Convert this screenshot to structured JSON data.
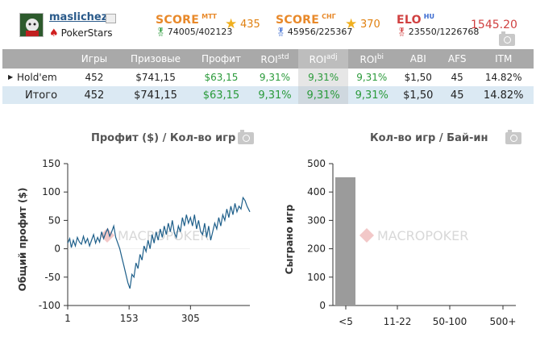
{
  "player": {
    "username": "maslichez",
    "room": "PokerStars"
  },
  "scores": [
    {
      "label": "SCORE",
      "sup": "МТТ",
      "rank": "74005/402123",
      "value": "435",
      "color": "#e8892a"
    },
    {
      "label": "SCORE",
      "sup": "СНГ",
      "rank": "45956/225367",
      "value": "370",
      "color": "#e8892a"
    },
    {
      "label": "ELO",
      "sup": "HU",
      "rank": "23550/1226768",
      "value": "1545.20",
      "color": "#d04040"
    }
  ],
  "table": {
    "headers": {
      "games": "Игры",
      "prize": "Призовые",
      "profit": "Профит",
      "roi": "ROI",
      "roi_std_sup": "std",
      "roi_adj_sup": "adj",
      "roi_bi_sup": "bi",
      "abi": "ABI",
      "afs": "AFS",
      "itm": "ITM"
    },
    "rows": [
      {
        "name": "Hold'em",
        "games": "452",
        "prize": "$741,15",
        "profit": "$63,15",
        "roi_std": "9,31%",
        "roi_adj": "9,31%",
        "roi_bi": "9,31%",
        "abi": "$1,50",
        "afs": "45",
        "itm": "14.82%"
      }
    ],
    "total": {
      "name": "Итого",
      "games": "452",
      "prize": "$741,15",
      "profit": "$63,15",
      "roi_std": "9,31%",
      "roi_adj": "9,31%",
      "roi_bi": "9,31%",
      "abi": "$1,50",
      "afs": "45",
      "itm": "14.82%"
    }
  },
  "watermark": {
    "text_a": "MACRO",
    "text_b": "POKER"
  },
  "chart_data": [
    {
      "type": "line",
      "title": "Профит ($) / Кол-во игр",
      "xlabel": "",
      "ylabel": "Общий профит ($)",
      "xlim": [
        1,
        452
      ],
      "ylim": [
        -100,
        150
      ],
      "xticks": [
        1,
        153,
        305
      ],
      "yticks": [
        150,
        100,
        50,
        0,
        -50,
        -100
      ],
      "grid": false,
      "series": [
        {
          "x": [
            1,
            6,
            10,
            15,
            20,
            25,
            30,
            35,
            40,
            45,
            50,
            55,
            60,
            65,
            70,
            75,
            80,
            85,
            90,
            95,
            100,
            105,
            110,
            115,
            120,
            125,
            130,
            135,
            140,
            145,
            150,
            155,
            160,
            165,
            170,
            175,
            180,
            185,
            190,
            195,
            200,
            205,
            210,
            215,
            220,
            225,
            230,
            235,
            240,
            245,
            250,
            255,
            260,
            265,
            270,
            275,
            280,
            285,
            290,
            295,
            300,
            305,
            310,
            315,
            320,
            325,
            330,
            335,
            340,
            345,
            350,
            355,
            360,
            365,
            370,
            375,
            380,
            385,
            390,
            395,
            400,
            405,
            410,
            415,
            420,
            425,
            430,
            435,
            440,
            445,
            452
          ],
          "y": [
            10,
            18,
            2,
            15,
            5,
            20,
            12,
            8,
            22,
            10,
            18,
            5,
            15,
            25,
            10,
            20,
            12,
            30,
            18,
            28,
            35,
            22,
            30,
            40,
            20,
            10,
            0,
            -15,
            -30,
            -45,
            -60,
            -70,
            -45,
            -50,
            -25,
            -35,
            -10,
            -20,
            5,
            -5,
            15,
            0,
            25,
            10,
            30,
            15,
            35,
            20,
            40,
            25,
            45,
            30,
            50,
            28,
            20,
            40,
            30,
            55,
            40,
            60,
            45,
            55,
            40,
            60,
            35,
            50,
            30,
            25,
            45,
            20,
            40,
            15,
            30,
            45,
            35,
            55,
            40,
            60,
            50,
            70,
            55,
            75,
            60,
            80,
            65,
            75,
            70,
            90,
            85,
            75,
            65
          ]
        }
      ]
    },
    {
      "type": "bar",
      "title": "Кол-во игр / Бай-ин",
      "xlabel": "",
      "ylabel": "Сыграно игр",
      "categories": [
        "<5",
        "11-22",
        "50-100",
        "500+"
      ],
      "values": [
        452,
        0,
        0,
        0
      ],
      "ylim": [
        0,
        500
      ],
      "yticks": [
        500,
        400,
        300,
        200,
        100,
        0
      ],
      "bar_color": "#9b9b9b",
      "grid": false
    }
  ]
}
